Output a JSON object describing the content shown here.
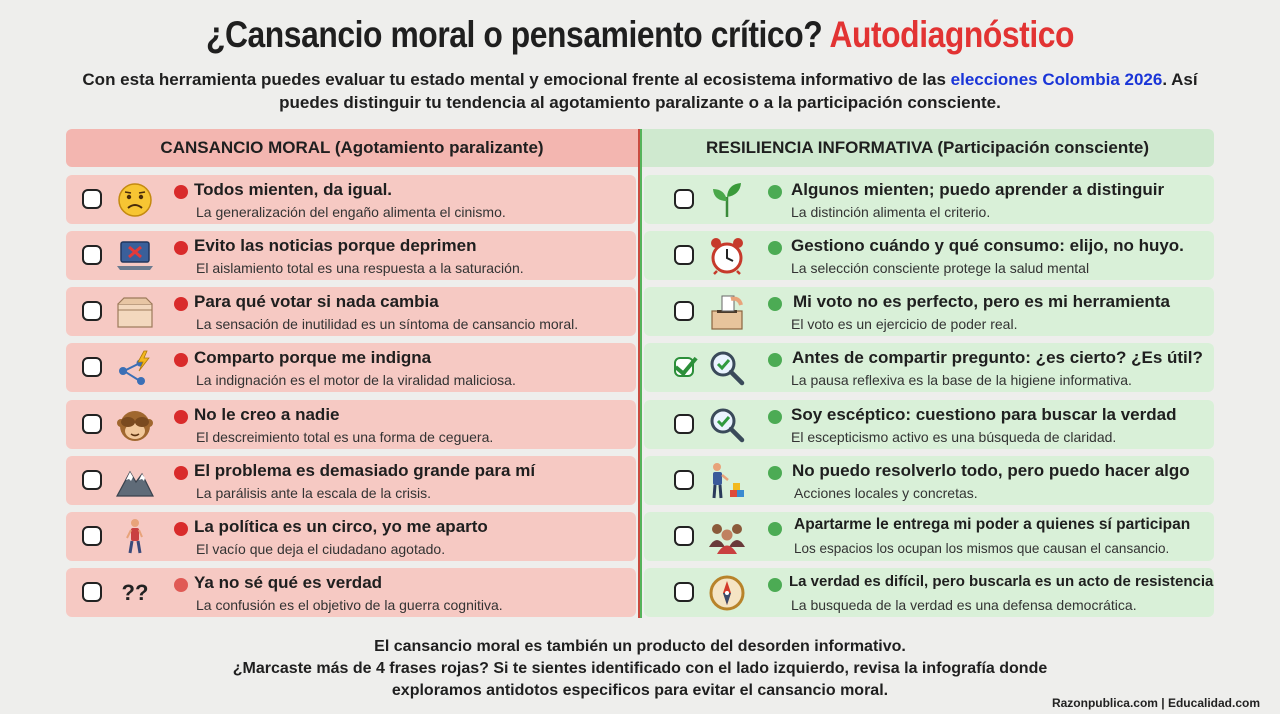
{
  "title": {
    "main": "¿Cansancio moral o pensamiento crítico?",
    "accent": "Autodiagnóstico"
  },
  "intro": {
    "part1": "Con esta herramienta puedes evaluar tu estado mental y emocional frente al ecosistema informativo de las ",
    "highlight": "elecciones Colombia 2026",
    "part2": ". Así puedes distinguir tu tendencia al agotamiento paralizante o a la participación consciente."
  },
  "left_header": "CANSANCIO MORAL (Agotamiento paralizante)",
  "right_header": "RESILIENCIA INFORMATIVA (Participación consciente)",
  "left_items": [
    {
      "head": "Todos mienten, da igual.",
      "sub": "La generalización del engaño alimenta el cinismo.",
      "icon": "worried-face-icon"
    },
    {
      "head": "Evito las noticias porque deprimen",
      "sub": "El aislamiento total es una respuesta a la saturación.",
      "icon": "laptop-blocked-icon"
    },
    {
      "head": "Para qué votar si nada cambia",
      "sub": "La sensación de inutilidad es un síntoma de cansancio moral.",
      "icon": "empty-box-icon"
    },
    {
      "head": "Comparto porque me indigna",
      "sub": "La indignación es el motor de la viralidad maliciosa.",
      "icon": "share-lightning-icon"
    },
    {
      "head": "No le creo a nadie",
      "sub": "El descreimiento total es una forma de ceguera.",
      "icon": "see-no-evil-monkey-icon"
    },
    {
      "head": "El problema es demasiado grande para mí",
      "sub": "La parálisis ante la escala de la crisis.",
      "icon": "mountain-icon"
    },
    {
      "head": "La política es un circo, yo me aparto",
      "sub": "El vacío que deja el ciudadano agotado.",
      "icon": "walking-person-icon"
    },
    {
      "head": "Ya no sé qué es verdad",
      "sub": "La confusión es el objetivo de la guerra cognitiva.",
      "icon": "question-marks-icon",
      "icon_text": "??"
    }
  ],
  "right_items": [
    {
      "head": "Algunos mienten; puedo aprender a distinguir",
      "sub": "La distinción alimenta el criterio.",
      "icon": "seedling-icon",
      "checked": false
    },
    {
      "head": "Gestiono cuándo y qué consumo: elijo, no huyo.",
      "sub": "La selección consciente protege la salud mental",
      "icon": "alarm-clock-icon",
      "checked": false
    },
    {
      "head": "Mi voto no es perfecto, pero es mi herramienta",
      "sub": "El voto es un ejercicio de poder real.",
      "icon": "ballot-box-icon",
      "checked": false
    },
    {
      "head": "Antes de compartir pregunto: ¿es cierto? ¿Es útil?",
      "sub": "La pausa reflexiva es la base de la higiene informativa.",
      "icon": "magnifier-check-icon",
      "checked": true
    },
    {
      "head": "Soy escéptico: cuestiono para buscar la verdad",
      "sub": "El escepticismo activo es una búsqueda de claridad.",
      "icon": "magnifier-check-icon",
      "checked": false
    },
    {
      "head": "No puedo resolverlo todo, pero puedo hacer algo",
      "sub": "Acciones locales y concretas.",
      "icon": "person-building-blocks-icon",
      "checked": false
    },
    {
      "head": "Apartarme le entrega mi poder a quienes sí participan",
      "sub": "Los espacios los ocupan los mismos que causan el cansancio.",
      "icon": "group-people-icon",
      "checked": false
    },
    {
      "head": "La verdad es difícil, pero buscarla es un acto de resistencia",
      "sub": "La busqueda de la verdad es una defensa democrática.",
      "icon": "compass-icon",
      "checked": false
    }
  ],
  "footer": {
    "line1": "El cansancio moral es también un producto del desorden informativo.",
    "line2": "¿Marcaste más de 4 frases rojas? Si te sientes identificado con el lado izquierdo, revisa la infografía donde",
    "line3": "exploramos antidotos especificos para evitar el cansancio moral."
  },
  "source": "Razonpublica.com | Educalidad.com",
  "colors": {
    "accent_red": "#e23333",
    "highlight_blue": "#1a35d8",
    "left_bg": "#f6c9c3",
    "right_bg": "#d9f0d8"
  }
}
